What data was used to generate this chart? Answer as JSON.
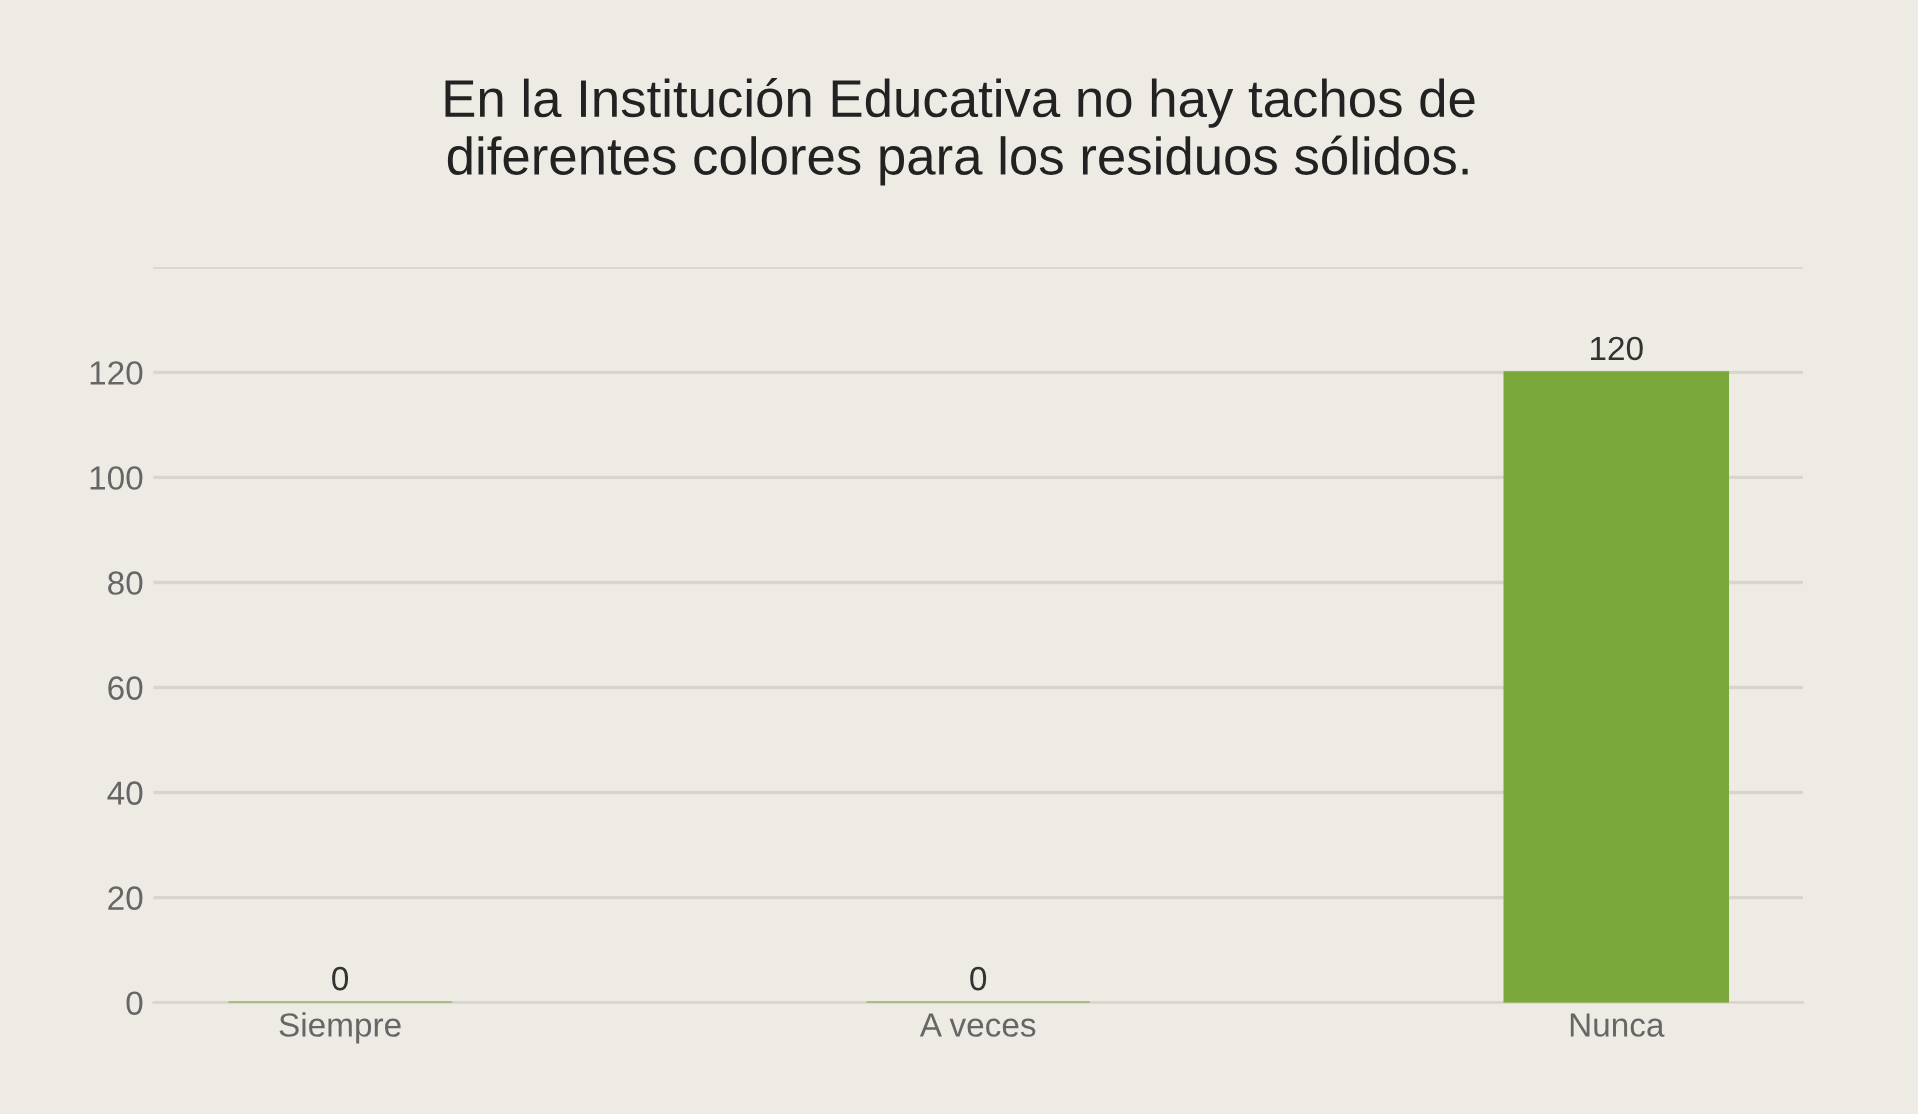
{
  "chart_data": {
    "type": "bar",
    "title": "En la Institución Educativa no hay tachos de\ndiferentes colores para los residuos sólidos.",
    "categories": [
      "Siempre",
      "A veces",
      "Nunca"
    ],
    "values": [
      0,
      0,
      120
    ],
    "color": "#7aa83a",
    "ylim": [
      0,
      140
    ],
    "yticks": [
      0,
      20,
      40,
      60,
      80,
      100,
      120,
      {
        "value": 140,
        "label": null
      }
    ],
    "grid": "y",
    "data_labels": true
  }
}
